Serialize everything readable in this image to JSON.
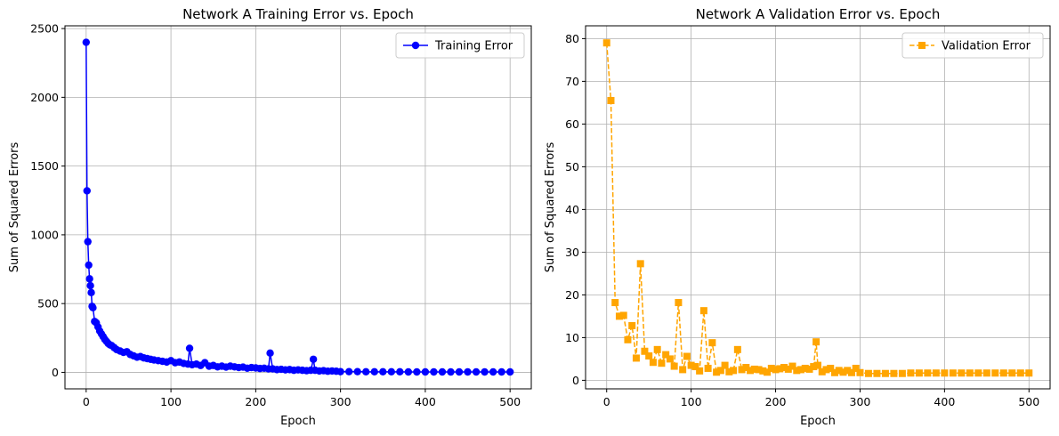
{
  "chart_data": [
    {
      "type": "line",
      "title": "Network A Training Error vs. Epoch",
      "xlabel": "Epoch",
      "ylabel": "Sum of Squared Errors",
      "xlim": [
        -25,
        525
      ],
      "ylim": [
        -120,
        2520
      ],
      "xticks": [
        0,
        100,
        200,
        300,
        400,
        500
      ],
      "yticks": [
        0,
        500,
        1000,
        1500,
        2000,
        2500
      ],
      "grid": true,
      "legend_position": "top-right",
      "series": [
        {
          "name": "Training Error",
          "color": "#0000ff",
          "line_style": "solid",
          "marker": "circle",
          "x": [
            0,
            1,
            2,
            3,
            4,
            5,
            6,
            7,
            8,
            10,
            12,
            14,
            16,
            18,
            20,
            22,
            24,
            26,
            28,
            30,
            33,
            36,
            40,
            44,
            48,
            52,
            56,
            60,
            64,
            68,
            72,
            76,
            80,
            85,
            90,
            95,
            100,
            105,
            110,
            115,
            120,
            122,
            125,
            130,
            135,
            140,
            145,
            150,
            155,
            160,
            165,
            170,
            175,
            180,
            185,
            190,
            195,
            200,
            205,
            210,
            215,
            217,
            220,
            225,
            230,
            235,
            240,
            245,
            250,
            255,
            260,
            265,
            268,
            270,
            275,
            280,
            285,
            290,
            295,
            300,
            310,
            320,
            330,
            340,
            350,
            360,
            370,
            380,
            390,
            400,
            410,
            420,
            430,
            440,
            450,
            460,
            470,
            480,
            490,
            500
          ],
          "y": [
            2400,
            1320,
            950,
            780,
            680,
            630,
            580,
            480,
            470,
            370,
            360,
            330,
            300,
            280,
            260,
            240,
            225,
            210,
            200,
            195,
            180,
            165,
            155,
            145,
            150,
            130,
            120,
            110,
            115,
            105,
            100,
            95,
            90,
            85,
            80,
            75,
            85,
            70,
            75,
            65,
            60,
            175,
            55,
            60,
            50,
            70,
            45,
            50,
            40,
            45,
            38,
            45,
            40,
            35,
            38,
            30,
            35,
            32,
            28,
            30,
            25,
            140,
            25,
            20,
            22,
            18,
            20,
            15,
            18,
            15,
            12,
            15,
            95,
            15,
            10,
            12,
            8,
            10,
            8,
            5,
            5,
            5,
            4,
            4,
            4,
            4,
            4,
            3,
            3,
            3,
            3,
            3,
            3,
            3,
            3,
            3,
            3,
            3,
            3,
            3
          ]
        }
      ]
    },
    {
      "type": "line",
      "title": "Network A Validation Error vs. Epoch",
      "xlabel": "Epoch",
      "ylabel": "Sum of Squared Errors",
      "xlim": [
        -25,
        525
      ],
      "ylim": [
        -2,
        83
      ],
      "xticks": [
        0,
        100,
        200,
        300,
        400,
        500
      ],
      "yticks": [
        0,
        10,
        20,
        30,
        40,
        50,
        60,
        70,
        80
      ],
      "grid": true,
      "legend_position": "top-right",
      "series": [
        {
          "name": "Validation Error",
          "color": "#ffa500",
          "line_style": "dashed",
          "marker": "square",
          "x": [
            0,
            5,
            10,
            15,
            20,
            25,
            30,
            35,
            40,
            45,
            50,
            55,
            60,
            65,
            70,
            75,
            80,
            85,
            90,
            95,
            100,
            105,
            110,
            115,
            120,
            125,
            130,
            135,
            140,
            145,
            150,
            155,
            160,
            165,
            170,
            175,
            180,
            185,
            190,
            195,
            200,
            205,
            210,
            215,
            220,
            225,
            230,
            235,
            240,
            245,
            248,
            250,
            255,
            260,
            265,
            270,
            275,
            280,
            285,
            290,
            295,
            300,
            310,
            320,
            330,
            340,
            350,
            360,
            370,
            380,
            390,
            400,
            410,
            420,
            430,
            440,
            450,
            460,
            470,
            480,
            490,
            500
          ],
          "y": [
            79,
            65.5,
            18.2,
            15,
            15.2,
            9.5,
            12.8,
            5.2,
            27.3,
            6.8,
            5.7,
            4.2,
            7.2,
            4,
            6,
            5,
            3.3,
            18.2,
            2.5,
            5.6,
            3.5,
            3.2,
            2.2,
            16.3,
            2.8,
            8.8,
            1.9,
            2.3,
            3.5,
            2,
            2.3,
            7.2,
            2.5,
            3,
            2.3,
            2.6,
            2.5,
            2.2,
            1.9,
            2.8,
            2.5,
            2.7,
            3,
            2.6,
            3.3,
            2.3,
            2.5,
            2.8,
            2.6,
            3.2,
            9,
            3.5,
            2,
            2.5,
            2.8,
            1.8,
            2.3,
            1.9,
            2.3,
            1.8,
            2.8,
            1.8,
            1.6,
            1.6,
            1.6,
            1.6,
            1.6,
            1.7,
            1.7,
            1.7,
            1.7,
            1.7,
            1.7,
            1.7,
            1.7,
            1.7,
            1.7,
            1.7,
            1.7,
            1.7,
            1.7,
            1.7
          ]
        }
      ]
    }
  ]
}
